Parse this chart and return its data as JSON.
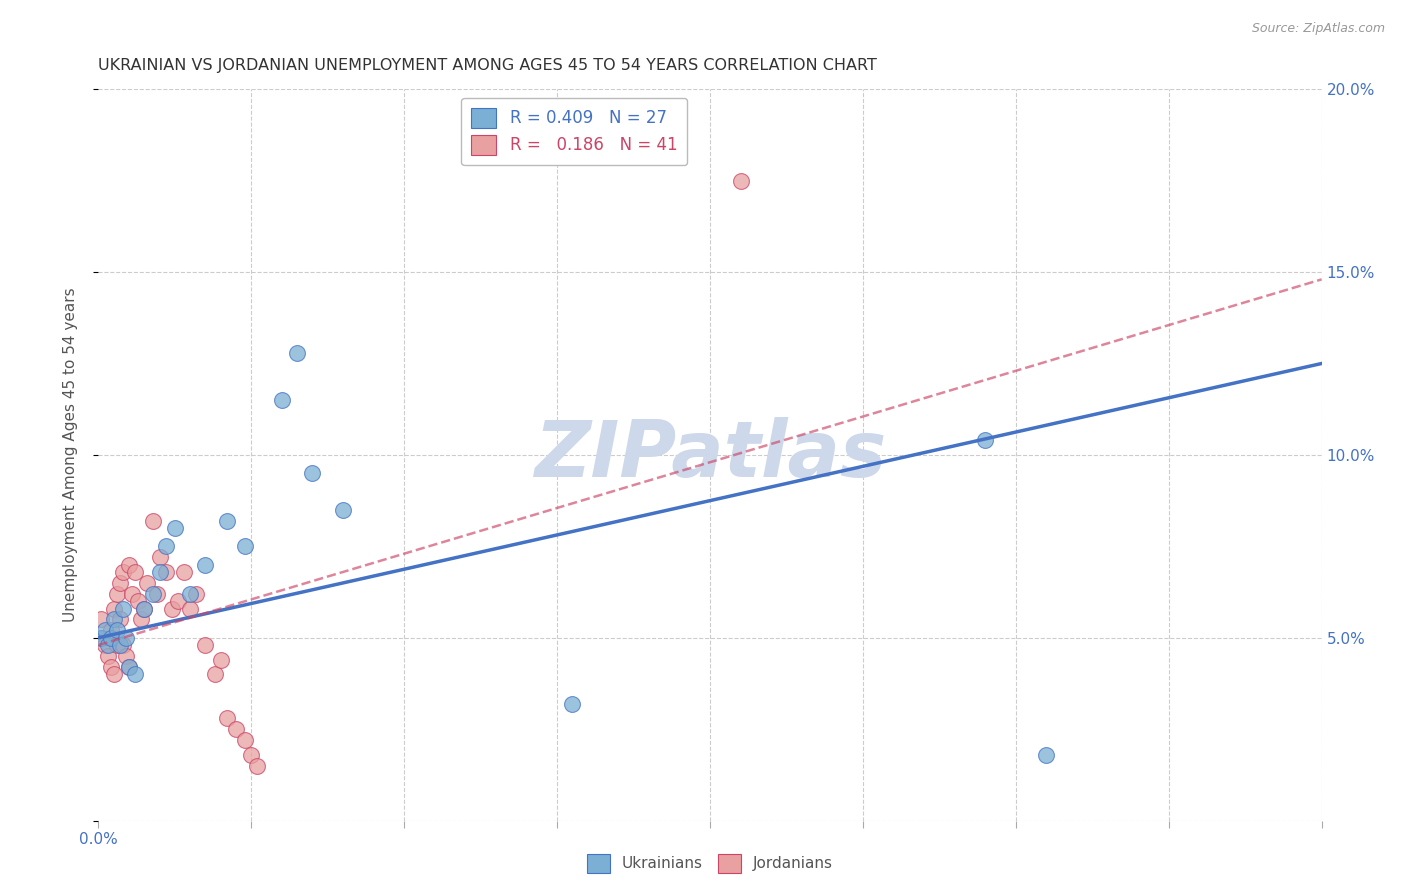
{
  "title": "UKRAINIAN VS JORDANIAN UNEMPLOYMENT AMONG AGES 45 TO 54 YEARS CORRELATION CHART",
  "source": "Source: ZipAtlas.com",
  "ylabel": "Unemployment Among Ages 45 to 54 years",
  "xlim": [
    0.0,
    0.4
  ],
  "ylim": [
    0.0,
    0.2
  ],
  "xticks": [
    0.0,
    0.05,
    0.1,
    0.15,
    0.2,
    0.25,
    0.3,
    0.35,
    0.4
  ],
  "xticklabels_show": {
    "0.0": "0.0%"
  },
  "yticks": [
    0.0,
    0.05,
    0.1,
    0.15,
    0.2
  ],
  "background_color": "#ffffff",
  "grid_color": "#cccccc",
  "watermark": "ZIPatlas",
  "watermark_color": "#cdd8ea",
  "ukrainian_R": 0.409,
  "ukrainian_N": 27,
  "jordanian_R": 0.186,
  "jordanian_N": 41,
  "ukrainian_color": "#7bafd4",
  "jordanian_color": "#e8a0a0",
  "ukrainian_line_color": "#4472c4",
  "jordanian_line_color": "#cc4466",
  "ukrainian_x": [
    0.001,
    0.002,
    0.003,
    0.004,
    0.005,
    0.006,
    0.007,
    0.008,
    0.009,
    0.01,
    0.012,
    0.015,
    0.018,
    0.02,
    0.022,
    0.025,
    0.03,
    0.035,
    0.042,
    0.048,
    0.06,
    0.065,
    0.07,
    0.08,
    0.155,
    0.29,
    0.31
  ],
  "ukrainian_y": [
    0.05,
    0.052,
    0.048,
    0.05,
    0.055,
    0.052,
    0.048,
    0.058,
    0.05,
    0.042,
    0.04,
    0.058,
    0.062,
    0.068,
    0.075,
    0.08,
    0.062,
    0.07,
    0.082,
    0.075,
    0.115,
    0.128,
    0.095,
    0.085,
    0.032,
    0.104,
    0.018
  ],
  "jordanian_x": [
    0.001,
    0.001,
    0.002,
    0.003,
    0.004,
    0.004,
    0.005,
    0.005,
    0.006,
    0.006,
    0.007,
    0.007,
    0.008,
    0.008,
    0.009,
    0.01,
    0.01,
    0.011,
    0.012,
    0.013,
    0.014,
    0.015,
    0.016,
    0.018,
    0.019,
    0.02,
    0.022,
    0.024,
    0.026,
    0.028,
    0.03,
    0.032,
    0.035,
    0.038,
    0.04,
    0.042,
    0.045,
    0.048,
    0.05,
    0.052,
    0.21
  ],
  "jordanian_y": [
    0.05,
    0.055,
    0.048,
    0.045,
    0.042,
    0.052,
    0.04,
    0.058,
    0.048,
    0.062,
    0.055,
    0.065,
    0.048,
    0.068,
    0.045,
    0.042,
    0.07,
    0.062,
    0.068,
    0.06,
    0.055,
    0.058,
    0.065,
    0.082,
    0.062,
    0.072,
    0.068,
    0.058,
    0.06,
    0.068,
    0.058,
    0.062,
    0.048,
    0.04,
    0.044,
    0.028,
    0.025,
    0.022,
    0.018,
    0.015,
    0.175
  ],
  "ukrainian_line_x0": 0.0,
  "ukrainian_line_y0": 0.05,
  "ukrainian_line_x1": 0.4,
  "ukrainian_line_y1": 0.125,
  "jordanian_line_x0": 0.0,
  "jordanian_line_y0": 0.048,
  "jordanian_line_x1": 0.4,
  "jordanian_line_y1": 0.148
}
